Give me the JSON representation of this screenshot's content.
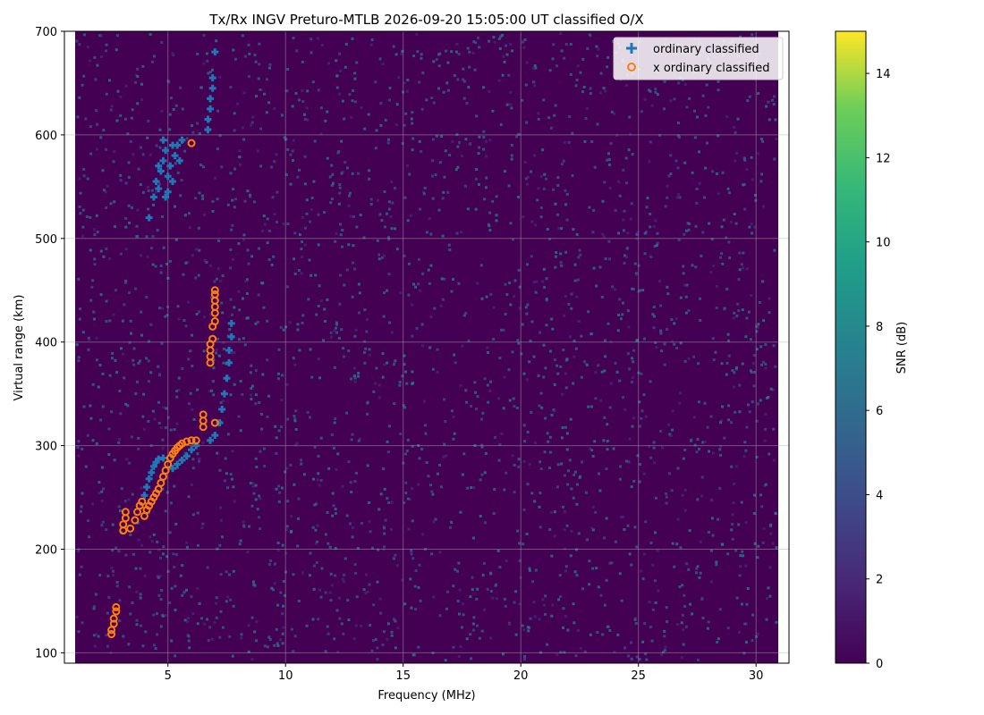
{
  "chart_data": {
    "type": "scatter",
    "title": "Tx/Rx INGV Preturo-MTLB 2026-09-20 15:05:00  UT classified O/X",
    "xlabel": "Frequency (MHz)",
    "ylabel": "Virtual range (km)",
    "xlim": [
      0.6,
      31.4
    ],
    "ylim": [
      90,
      700
    ],
    "xticks": [
      5,
      10,
      15,
      20,
      25,
      30
    ],
    "yticks": [
      100,
      200,
      300,
      400,
      500,
      600,
      700
    ],
    "grid": true,
    "legend_position": "top-right",
    "background": "ionogram SNR heatmap (viridis), mostly near 0 dB with sparse noise pixels",
    "colorbar": {
      "label": "SNR (dB)",
      "range": [
        0,
        15
      ],
      "ticks": [
        0,
        2,
        4,
        6,
        8,
        10,
        12,
        14
      ],
      "colormap": "viridis"
    },
    "series": [
      {
        "name": "ordinary classified",
        "marker": "plus",
        "color": "#1f77b4",
        "points": [
          [
            4.2,
            520
          ],
          [
            4.4,
            540
          ],
          [
            4.5,
            555
          ],
          [
            4.6,
            548
          ],
          [
            4.7,
            565
          ],
          [
            4.8,
            575
          ],
          [
            4.9,
            585
          ],
          [
            5.0,
            560
          ],
          [
            5.1,
            570
          ],
          [
            5.2,
            555
          ],
          [
            5.3,
            580
          ],
          [
            5.4,
            590
          ],
          [
            5.5,
            575
          ],
          [
            5.6,
            595
          ],
          [
            4.8,
            595
          ],
          [
            5.0,
            545
          ],
          [
            4.6,
            570
          ],
          [
            5.2,
            590
          ],
          [
            4.9,
            540
          ],
          [
            6.7,
            605
          ],
          [
            6.7,
            615
          ],
          [
            6.8,
            625
          ],
          [
            6.8,
            635
          ],
          [
            6.9,
            645
          ],
          [
            6.9,
            655
          ],
          [
            7.0,
            680
          ],
          [
            4.0,
            252
          ],
          [
            4.1,
            260
          ],
          [
            4.2,
            268
          ],
          [
            4.3,
            274
          ],
          [
            4.4,
            280
          ],
          [
            4.5,
            284
          ],
          [
            4.6,
            287
          ],
          [
            4.8,
            288
          ],
          [
            5.2,
            278
          ],
          [
            5.4,
            282
          ],
          [
            5.6,
            286
          ],
          [
            5.8,
            290
          ],
          [
            6.0,
            296
          ],
          [
            6.2,
            300
          ],
          [
            6.8,
            305
          ],
          [
            7.0,
            310
          ],
          [
            7.2,
            322
          ],
          [
            7.3,
            335
          ],
          [
            7.4,
            350
          ],
          [
            7.5,
            365
          ],
          [
            7.6,
            380
          ],
          [
            7.6,
            392
          ],
          [
            7.7,
            405
          ],
          [
            7.7,
            418
          ]
        ]
      },
      {
        "name": "x ordinary classified",
        "marker": "circle",
        "color": "#ff7f0e",
        "points": [
          [
            2.6,
            118
          ],
          [
            2.6,
            122
          ],
          [
            2.7,
            128
          ],
          [
            2.7,
            133
          ],
          [
            2.8,
            140
          ],
          [
            2.8,
            144
          ],
          [
            3.1,
            218
          ],
          [
            3.1,
            224
          ],
          [
            3.2,
            230
          ],
          [
            3.2,
            236
          ],
          [
            3.4,
            220
          ],
          [
            3.6,
            228
          ],
          [
            3.7,
            236
          ],
          [
            3.8,
            242
          ],
          [
            3.9,
            246
          ],
          [
            4.0,
            232
          ],
          [
            4.1,
            238
          ],
          [
            4.2,
            242
          ],
          [
            4.3,
            246
          ],
          [
            4.4,
            250
          ],
          [
            4.5,
            254
          ],
          [
            4.6,
            258
          ],
          [
            4.7,
            264
          ],
          [
            4.8,
            270
          ],
          [
            4.9,
            276
          ],
          [
            5.0,
            282
          ],
          [
            5.1,
            288
          ],
          [
            5.2,
            292
          ],
          [
            5.3,
            295
          ],
          [
            5.4,
            298
          ],
          [
            5.5,
            300
          ],
          [
            5.6,
            302
          ],
          [
            5.8,
            304
          ],
          [
            6.0,
            305
          ],
          [
            6.2,
            305
          ],
          [
            6.5,
            318
          ],
          [
            6.5,
            324
          ],
          [
            6.5,
            330
          ],
          [
            6.8,
            380
          ],
          [
            6.8,
            386
          ],
          [
            6.8,
            392
          ],
          [
            6.8,
            398
          ],
          [
            6.9,
            403
          ],
          [
            7.0,
            322
          ],
          [
            6.9,
            415
          ],
          [
            7.0,
            420
          ],
          [
            7.0,
            428
          ],
          [
            7.0,
            434
          ],
          [
            7.0,
            440
          ],
          [
            7.0,
            446
          ],
          [
            7.0,
            450
          ],
          [
            6.0,
            592
          ]
        ]
      }
    ]
  }
}
